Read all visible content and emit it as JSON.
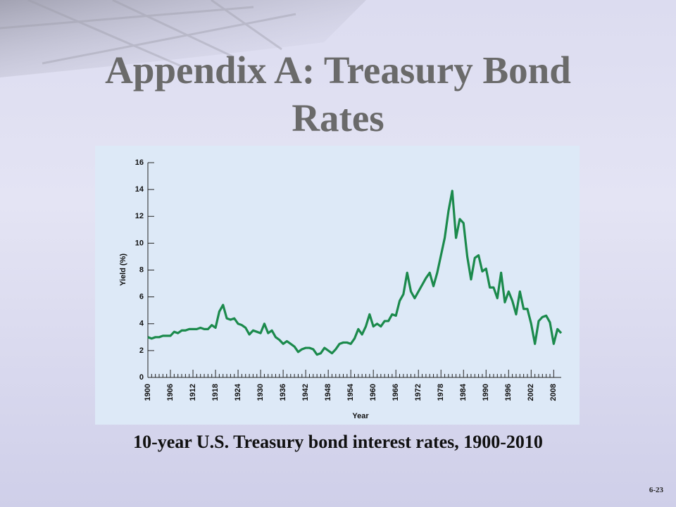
{
  "title": "Appendix A: Treasury Bond Rates",
  "caption": "10-year U.S. Treasury bond interest rates, 1900-2010",
  "page_number": "6-23",
  "chart_data": {
    "type": "line",
    "xlabel": "Year",
    "ylabel": "Yield (%)",
    "x": [
      1900,
      1901,
      1902,
      1903,
      1904,
      1905,
      1906,
      1907,
      1908,
      1909,
      1910,
      1911,
      1912,
      1913,
      1914,
      1915,
      1916,
      1917,
      1918,
      1919,
      1920,
      1921,
      1922,
      1923,
      1924,
      1925,
      1926,
      1927,
      1928,
      1929,
      1930,
      1931,
      1932,
      1933,
      1934,
      1935,
      1936,
      1937,
      1938,
      1939,
      1940,
      1941,
      1942,
      1943,
      1944,
      1945,
      1946,
      1947,
      1948,
      1949,
      1950,
      1951,
      1952,
      1953,
      1954,
      1955,
      1956,
      1957,
      1958,
      1959,
      1960,
      1961,
      1962,
      1963,
      1964,
      1965,
      1966,
      1967,
      1968,
      1969,
      1970,
      1971,
      1972,
      1973,
      1974,
      1975,
      1976,
      1977,
      1978,
      1979,
      1980,
      1981,
      1982,
      1983,
      1984,
      1985,
      1986,
      1987,
      1988,
      1989,
      1990,
      1991,
      1992,
      1993,
      1994,
      1995,
      1996,
      1997,
      1998,
      1999,
      2000,
      2001,
      2002,
      2003,
      2004,
      2005,
      2006,
      2007,
      2008,
      2009,
      2010
    ],
    "values": [
      3.0,
      2.9,
      3.0,
      3.0,
      3.1,
      3.1,
      3.1,
      3.4,
      3.3,
      3.5,
      3.5,
      3.6,
      3.6,
      3.6,
      3.7,
      3.6,
      3.6,
      3.9,
      3.7,
      4.9,
      5.4,
      4.4,
      4.3,
      4.4,
      4.0,
      3.9,
      3.7,
      3.2,
      3.5,
      3.4,
      3.3,
      4.0,
      3.3,
      3.5,
      3.0,
      2.8,
      2.5,
      2.7,
      2.5,
      2.3,
      1.9,
      2.1,
      2.2,
      2.2,
      2.1,
      1.7,
      1.8,
      2.2,
      2.0,
      1.8,
      2.1,
      2.5,
      2.6,
      2.6,
      2.5,
      2.9,
      3.6,
      3.2,
      3.8,
      4.7,
      3.8,
      4.0,
      3.8,
      4.2,
      4.2,
      4.7,
      4.6,
      5.7,
      6.2,
      7.8,
      6.4,
      5.9,
      6.4,
      6.9,
      7.4,
      7.8,
      6.8,
      7.8,
      9.1,
      10.4,
      12.4,
      13.9,
      10.4,
      11.8,
      11.5,
      9.0,
      7.3,
      8.9,
      9.1,
      7.9,
      8.1,
      6.7,
      6.7,
      5.9,
      7.8,
      5.6,
      6.4,
      5.7,
      4.7,
      6.4,
      5.1,
      5.1,
      4.0,
      2.5,
      4.2,
      4.5,
      4.6,
      4.1,
      2.5,
      3.6,
      3.3
    ],
    "color": "#1b8a4c",
    "xlim": [
      1900,
      2010
    ],
    "xticks": [
      1900,
      1906,
      1912,
      1918,
      1924,
      1930,
      1936,
      1942,
      1948,
      1954,
      1960,
      1966,
      1972,
      1978,
      1984,
      1990,
      1996,
      2002,
      2008
    ],
    "ylim": [
      0,
      16
    ],
    "yticks": [
      0,
      2,
      4,
      6,
      8,
      10,
      12,
      14,
      16
    ]
  }
}
